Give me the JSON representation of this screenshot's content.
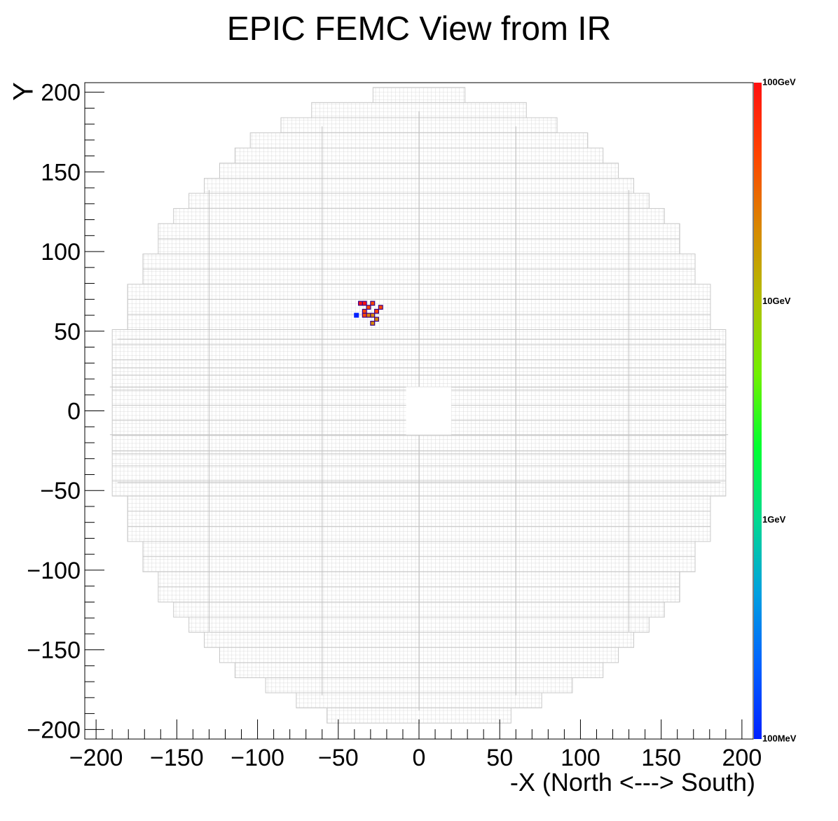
{
  "chart_data": {
    "type": "heatmap",
    "title": "EPIC FEMC View from IR",
    "xlabel": "-X (North <---> South)",
    "ylabel": "Y",
    "xlim": [
      -207,
      207
    ],
    "ylim": [
      -206,
      206
    ],
    "x_ticks": [
      -200,
      -150,
      -100,
      -50,
      0,
      50,
      100,
      150,
      200
    ],
    "y_ticks": [
      -200,
      -150,
      -100,
      -50,
      0,
      50,
      100,
      150,
      200
    ],
    "x_tick_labels": [
      "−200",
      "−150",
      "−100",
      "−50",
      "0",
      "50",
      "100",
      "150",
      "200"
    ],
    "y_tick_labels": [
      "−200",
      "−150",
      "−100",
      "−50",
      "0",
      "50",
      "100",
      "150",
      "200"
    ],
    "grid": false,
    "log_z": true,
    "z_range_GeV": [
      0.1,
      100
    ],
    "colorbar": {
      "labels": [
        {
          "text": "100GeV",
          "value": 100
        },
        {
          "text": "10GeV",
          "value": 10
        },
        {
          "text": "1GeV",
          "value": 1
        },
        {
          "text": "100MeV",
          "value": 0.1
        }
      ],
      "colors": [
        "#0020ff",
        "#0060ff",
        "#00a0e0",
        "#00d890",
        "#00ff30",
        "#70f000",
        "#b0c000",
        "#d88800",
        "#ff4400",
        "#ff1010"
      ]
    },
    "detector": {
      "cell_size": 2.5,
      "outer_radius": 196,
      "beam_hole": {
        "x": [
          -8,
          20
        ],
        "y": [
          -15,
          15
        ]
      },
      "cell_color": "#d8d8d8"
    },
    "hits": [
      {
        "x": -38.75,
        "y": 60,
        "e": 0.13
      },
      {
        "x": -36.25,
        "y": 67.5,
        "e": 60
      },
      {
        "x": -33.75,
        "y": 67.5,
        "e": 55
      },
      {
        "x": -28.75,
        "y": 67.5,
        "e": 50
      },
      {
        "x": -31.25,
        "y": 65,
        "e": 45
      },
      {
        "x": -23.75,
        "y": 65,
        "e": 40
      },
      {
        "x": -33.75,
        "y": 62.5,
        "e": 35
      },
      {
        "x": -26.25,
        "y": 62.5,
        "e": 30
      },
      {
        "x": -33.75,
        "y": 60,
        "e": 30
      },
      {
        "x": -31.25,
        "y": 60,
        "e": 25
      },
      {
        "x": -28.75,
        "y": 60,
        "e": 25
      },
      {
        "x": -26.25,
        "y": 57.5,
        "e": 20
      },
      {
        "x": -28.75,
        "y": 55,
        "e": 20
      }
    ]
  }
}
